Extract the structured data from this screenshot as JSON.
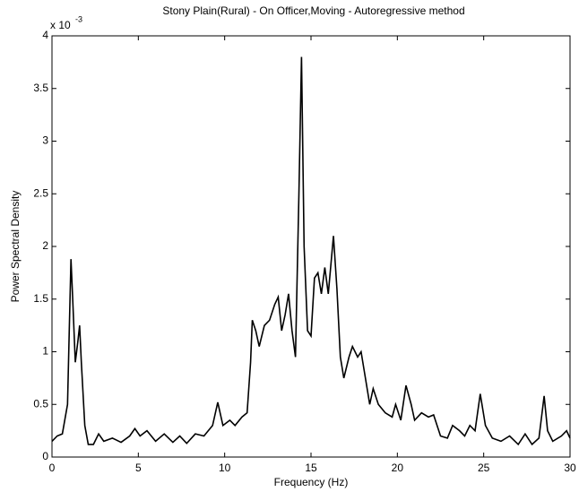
{
  "chart_data": {
    "type": "line",
    "title": "Stony Plain(Rural) - On Officer,Moving - Autoregressive method",
    "x_label": "Frequency (Hz)",
    "y_label": "Power Spectral Density",
    "y_multiplier": "x 10",
    "y_multiplier_exponent": "-3",
    "xlim": [
      0,
      30
    ],
    "ylim": [
      0,
      4
    ],
    "xticks": [
      0,
      5,
      10,
      15,
      20,
      25,
      30
    ],
    "yticks": [
      0,
      0.5,
      1,
      1.5,
      2,
      2.5,
      3,
      3.5,
      4
    ],
    "grid": false,
    "series": [
      {
        "color": "#000000",
        "x": [
          0,
          0.3,
          0.6,
          0.9,
          1.0,
          1.1,
          1.2,
          1.35,
          1.5,
          1.6,
          1.7,
          1.9,
          2.1,
          2.4,
          2.7,
          3.0,
          3.5,
          4.0,
          4.5,
          4.8,
          5.1,
          5.5,
          6.0,
          6.5,
          7.0,
          7.4,
          7.8,
          8.3,
          8.8,
          9.3,
          9.6,
          9.9,
          10.3,
          10.6,
          11.0,
          11.3,
          11.5,
          11.6,
          11.8,
          12.0,
          12.3,
          12.6,
          12.9,
          13.1,
          13.3,
          13.5,
          13.7,
          13.9,
          14.1,
          14.3,
          14.45,
          14.6,
          14.8,
          15.0,
          15.2,
          15.4,
          15.6,
          15.8,
          16.0,
          16.3,
          16.5,
          16.7,
          16.9,
          17.2,
          17.4,
          17.7,
          17.9,
          18.1,
          18.4,
          18.6,
          18.9,
          19.3,
          19.7,
          19.9,
          20.2,
          20.5,
          20.8,
          21.0,
          21.4,
          21.8,
          22.1,
          22.5,
          22.9,
          23.2,
          23.6,
          23.9,
          24.2,
          24.5,
          24.8,
          25.1,
          25.5,
          26.0,
          26.5,
          27.0,
          27.4,
          27.8,
          28.2,
          28.5,
          28.7,
          29.0,
          29.5,
          29.8,
          30.0
        ],
        "values": [
          0.15,
          0.2,
          0.22,
          0.5,
          1.2,
          1.88,
          1.5,
          0.9,
          1.1,
          1.25,
          0.9,
          0.3,
          0.12,
          0.12,
          0.22,
          0.15,
          0.18,
          0.14,
          0.2,
          0.27,
          0.2,
          0.25,
          0.15,
          0.22,
          0.14,
          0.2,
          0.13,
          0.22,
          0.2,
          0.3,
          0.52,
          0.3,
          0.35,
          0.3,
          0.38,
          0.42,
          0.9,
          1.3,
          1.2,
          1.05,
          1.25,
          1.3,
          1.45,
          1.52,
          1.2,
          1.35,
          1.55,
          1.2,
          0.95,
          2.5,
          3.8,
          2.0,
          1.2,
          1.15,
          1.7,
          1.75,
          1.55,
          1.8,
          1.55,
          2.1,
          1.6,
          0.95,
          0.75,
          0.95,
          1.05,
          0.95,
          1.0,
          0.8,
          0.5,
          0.65,
          0.5,
          0.42,
          0.38,
          0.5,
          0.35,
          0.68,
          0.5,
          0.35,
          0.42,
          0.38,
          0.4,
          0.2,
          0.18,
          0.3,
          0.25,
          0.2,
          0.3,
          0.25,
          0.6,
          0.3,
          0.18,
          0.15,
          0.2,
          0.12,
          0.22,
          0.12,
          0.18,
          0.58,
          0.25,
          0.15,
          0.2,
          0.25,
          0.18
        ]
      }
    ]
  }
}
